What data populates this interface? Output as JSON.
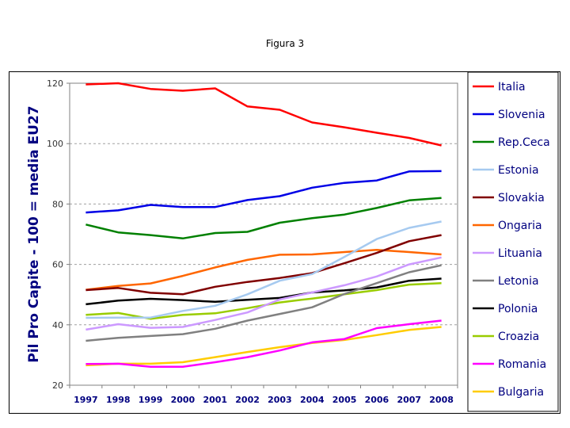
{
  "figure_title": "Figura 3",
  "chart_data": {
    "type": "line",
    "title": "",
    "xlabel": "",
    "ylabel": "Pil Pro Capite - 100 = media EU27",
    "ylim": [
      20,
      120
    ],
    "yticks": [
      "20",
      "40",
      "60",
      "80",
      "100",
      "120"
    ],
    "grid": "horizontal dashed",
    "legend": "right",
    "categories": [
      "1997",
      "1998",
      "1999",
      "2000",
      "2001",
      "2002",
      "2003",
      "2004",
      "2005",
      "2006",
      "2007",
      "2008"
    ],
    "series": [
      {
        "name": "Italia",
        "color": "#ff0000",
        "values": [
          119.6,
          120.0,
          118.1,
          117.5,
          118.3,
          112.3,
          111.2,
          107.0,
          105.4,
          103.6,
          101.9,
          99.4
        ]
      },
      {
        "name": "Slovenia",
        "color": "#0000e6",
        "values": [
          77.2,
          77.9,
          79.7,
          79.0,
          79.0,
          81.3,
          82.6,
          85.4,
          87.0,
          87.8,
          90.8,
          90.9
        ]
      },
      {
        "name": "Rep.Ceca",
        "color": "#008000",
        "values": [
          73.2,
          70.6,
          69.7,
          68.6,
          70.4,
          70.8,
          73.8,
          75.3,
          76.5,
          78.7,
          81.2,
          82.0
        ]
      },
      {
        "name": "Estonia",
        "color": "#a6caf0",
        "values": [
          42.3,
          42.4,
          42.4,
          44.6,
          46.3,
          50.1,
          54.6,
          56.8,
          62.5,
          68.4,
          72.1,
          74.2
        ]
      },
      {
        "name": "Slovakia",
        "color": "#800000",
        "values": [
          51.5,
          52.2,
          50.6,
          50.1,
          52.6,
          54.2,
          55.5,
          57.1,
          60.4,
          63.8,
          67.7,
          69.7
        ]
      },
      {
        "name": "Ongaria",
        "color": "#ff6600",
        "values": [
          51.6,
          52.9,
          53.7,
          56.2,
          59.0,
          61.5,
          63.2,
          63.3,
          64.1,
          64.8,
          64.1,
          63.3
        ]
      },
      {
        "name": "Lituania",
        "color": "#cc99ff",
        "values": [
          38.4,
          40.2,
          39.0,
          39.3,
          41.6,
          44.1,
          48.4,
          50.7,
          53.1,
          56.0,
          60.0,
          62.3
        ]
      },
      {
        "name": "Letonia",
        "color": "#808080",
        "values": [
          34.7,
          35.7,
          36.3,
          36.9,
          38.7,
          41.4,
          43.6,
          45.8,
          50.2,
          53.8,
          57.4,
          59.7
        ]
      },
      {
        "name": "Polonia",
        "color": "#000000",
        "values": [
          46.8,
          48.0,
          48.6,
          48.2,
          47.6,
          48.3,
          48.9,
          50.7,
          51.4,
          52.4,
          54.6,
          55.3
        ]
      },
      {
        "name": "Croazia",
        "color": "#99cc00",
        "values": [
          43.3,
          43.9,
          42.0,
          43.3,
          43.8,
          45.5,
          47.4,
          48.7,
          50.1,
          51.5,
          53.3,
          53.8
        ]
      },
      {
        "name": "Romania",
        "color": "#ff00ff",
        "values": [
          27.0,
          27.1,
          26.1,
          26.1,
          27.6,
          29.3,
          31.5,
          34.2,
          35.3,
          38.9,
          40.2,
          41.4
        ]
      },
      {
        "name": "Bulgaria",
        "color": "#ffcc00",
        "values": [
          26.6,
          27.1,
          27.1,
          27.6,
          29.3,
          31.0,
          32.6,
          34.0,
          35.0,
          36.6,
          38.3,
          39.3
        ]
      }
    ]
  }
}
